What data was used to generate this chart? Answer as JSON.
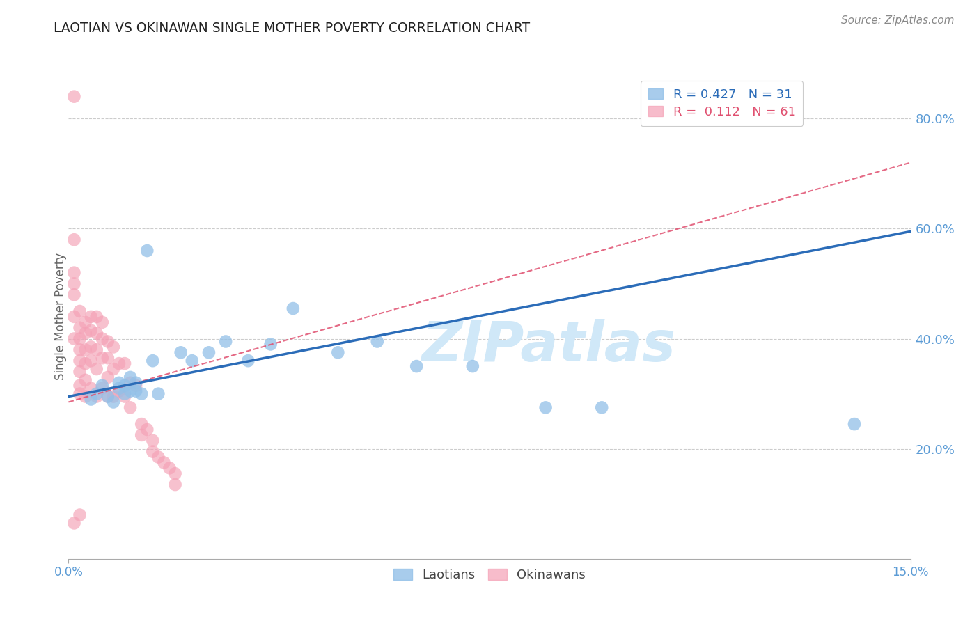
{
  "title": "LAOTIAN VS OKINAWAN SINGLE MOTHER POVERTY CORRELATION CHART",
  "source": "Source: ZipAtlas.com",
  "ylabel": "Single Mother Poverty",
  "y_ticks": [
    0.2,
    0.4,
    0.6,
    0.8
  ],
  "y_tick_labels": [
    "20.0%",
    "40.0%",
    "60.0%",
    "80.0%"
  ],
  "xlim": [
    0.0,
    0.15
  ],
  "ylim": [
    0.0,
    0.88
  ],
  "blue_color": "#92C0E8",
  "pink_color": "#F4A0B5",
  "trend_blue_color": "#2B6CB8",
  "trend_pink_color": "#E05070",
  "watermark_color": "#D0E8F8",
  "blue_R": "0.427",
  "blue_N": "31",
  "pink_R": "0.112",
  "pink_N": "61",
  "blue_trend_x": [
    0.0,
    0.15
  ],
  "blue_trend_y": [
    0.295,
    0.595
  ],
  "pink_trend_x": [
    0.0,
    0.15
  ],
  "pink_trend_y": [
    0.285,
    0.72
  ],
  "blue_points_x": [
    0.004,
    0.005,
    0.006,
    0.007,
    0.008,
    0.009,
    0.009,
    0.01,
    0.01,
    0.011,
    0.011,
    0.012,
    0.012,
    0.013,
    0.014,
    0.015,
    0.016,
    0.02,
    0.022,
    0.025,
    0.028,
    0.032,
    0.036,
    0.04,
    0.048,
    0.055,
    0.062,
    0.072,
    0.085,
    0.095,
    0.14
  ],
  "blue_points_y": [
    0.29,
    0.3,
    0.315,
    0.295,
    0.285,
    0.31,
    0.32,
    0.315,
    0.3,
    0.33,
    0.305,
    0.32,
    0.305,
    0.3,
    0.56,
    0.36,
    0.3,
    0.375,
    0.36,
    0.375,
    0.395,
    0.36,
    0.39,
    0.455,
    0.375,
    0.395,
    0.35,
    0.35,
    0.275,
    0.275,
    0.245
  ],
  "pink_points_x": [
    0.001,
    0.001,
    0.001,
    0.001,
    0.001,
    0.001,
    0.002,
    0.002,
    0.002,
    0.002,
    0.002,
    0.002,
    0.002,
    0.002,
    0.003,
    0.003,
    0.003,
    0.003,
    0.003,
    0.003,
    0.004,
    0.004,
    0.004,
    0.004,
    0.004,
    0.005,
    0.005,
    0.005,
    0.005,
    0.005,
    0.006,
    0.006,
    0.006,
    0.006,
    0.007,
    0.007,
    0.007,
    0.007,
    0.008,
    0.008,
    0.008,
    0.009,
    0.009,
    0.01,
    0.01,
    0.011,
    0.011,
    0.012,
    0.013,
    0.013,
    0.014,
    0.015,
    0.015,
    0.016,
    0.017,
    0.018,
    0.019,
    0.019,
    0.001,
    0.001,
    0.002
  ],
  "pink_points_y": [
    0.58,
    0.52,
    0.5,
    0.48,
    0.44,
    0.4,
    0.45,
    0.42,
    0.4,
    0.38,
    0.36,
    0.34,
    0.315,
    0.3,
    0.43,
    0.41,
    0.38,
    0.355,
    0.325,
    0.295,
    0.44,
    0.415,
    0.385,
    0.36,
    0.31,
    0.44,
    0.41,
    0.38,
    0.345,
    0.295,
    0.43,
    0.4,
    0.365,
    0.31,
    0.395,
    0.365,
    0.33,
    0.295,
    0.385,
    0.345,
    0.295,
    0.355,
    0.305,
    0.355,
    0.295,
    0.32,
    0.275,
    0.315,
    0.245,
    0.225,
    0.235,
    0.215,
    0.195,
    0.185,
    0.175,
    0.165,
    0.155,
    0.135,
    0.84,
    0.065,
    0.08
  ]
}
